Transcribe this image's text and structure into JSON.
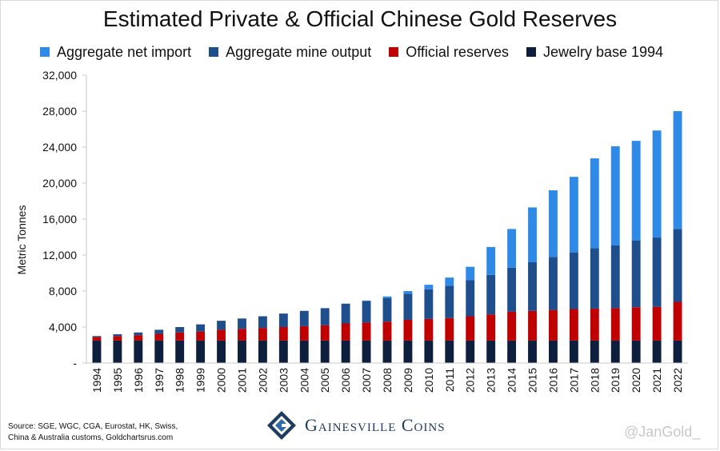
{
  "header": {
    "title": "Estimated Private & Official Chinese Gold Reserves"
  },
  "footer": {
    "source_line1": "Source: SGE, WGC, CGA, Eurostat, HK, Swiss,",
    "source_line2": "China & Australia customs, Goldchartsrus.com",
    "logo_text": "Gainesville Coins",
    "handle": "@JanGold_"
  },
  "chart_data": {
    "type": "bar",
    "stacked": true,
    "title": "Estimated Private & Official Chinese Gold Reserves",
    "xlabel": "",
    "ylabel": "Metric Tonnes",
    "ylim": [
      0,
      32000
    ],
    "yticks": [
      0,
      4000,
      8000,
      12000,
      16000,
      20000,
      24000,
      28000,
      32000
    ],
    "ytick_labels": [
      "-",
      "4,000",
      "8,000",
      "12,000",
      "16,000",
      "20,000",
      "24,000",
      "28,000",
      "32,000"
    ],
    "grid": false,
    "legend_position": "top",
    "categories": [
      "1994",
      "1995",
      "1996",
      "1997",
      "1998",
      "1999",
      "2000",
      "2001",
      "2002",
      "2003",
      "2004",
      "2005",
      "2006",
      "2007",
      "2008",
      "2009",
      "2010",
      "2011",
      "2012",
      "2013",
      "2014",
      "2015",
      "2016",
      "2017",
      "2018",
      "2019",
      "2020",
      "2021",
      "2022"
    ],
    "series": [
      {
        "name": "Jewelry base 1994",
        "color": "#0d1f3c",
        "values": [
          2500,
          2500,
          2500,
          2500,
          2500,
          2500,
          2500,
          2500,
          2500,
          2500,
          2500,
          2500,
          2500,
          2500,
          2500,
          2500,
          2500,
          2500,
          2500,
          2500,
          2500,
          2500,
          2500,
          2500,
          2500,
          2500,
          2500,
          2500,
          2500
        ]
      },
      {
        "name": "Official reserves",
        "color": "#c00000",
        "values": [
          400,
          500,
          600,
          750,
          900,
          1000,
          1200,
          1300,
          1400,
          1500,
          1600,
          1700,
          1900,
          2000,
          2100,
          2300,
          2400,
          2500,
          2700,
          2900,
          3200,
          3300,
          3400,
          3500,
          3550,
          3600,
          3700,
          3750,
          4300
        ]
      },
      {
        "name": "Aggregate mine output",
        "color": "#1f4e8c",
        "values": [
          100,
          200,
          300,
          450,
          600,
          800,
          1000,
          1150,
          1300,
          1500,
          1700,
          1900,
          2200,
          2400,
          2600,
          2900,
          3300,
          3600,
          4000,
          4400,
          4900,
          5400,
          5900,
          6300,
          6700,
          7000,
          7400,
          7700,
          8100
        ]
      },
      {
        "name": "Aggregate net import",
        "color": "#2e8ae6",
        "values": [
          0,
          0,
          0,
          0,
          0,
          0,
          0,
          0,
          0,
          0,
          0,
          0,
          0,
          50,
          200,
          300,
          500,
          900,
          1500,
          3100,
          4300,
          6100,
          7400,
          8400,
          10000,
          11000,
          11100,
          11900,
          13100
        ]
      }
    ]
  }
}
